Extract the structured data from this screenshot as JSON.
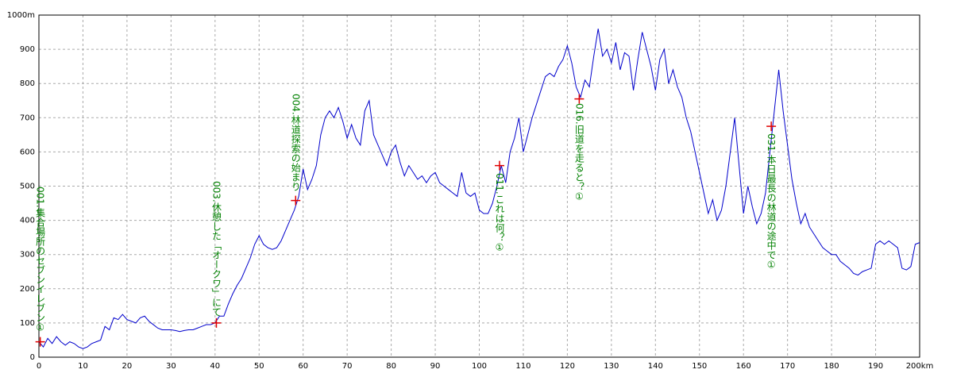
{
  "chart_data": {
    "type": "line",
    "color": "#0000cc",
    "grid": true,
    "x": [
      0,
      1,
      2,
      3,
      4,
      5,
      6,
      7,
      8,
      9,
      10,
      11,
      12,
      13,
      14,
      15,
      16,
      17,
      18,
      19,
      20,
      21,
      22,
      23,
      24,
      25,
      26,
      27,
      28,
      29,
      30,
      31,
      32,
      33,
      34,
      35,
      36,
      37,
      38,
      39,
      40,
      41,
      42,
      43,
      44,
      45,
      46,
      47,
      48,
      49,
      50,
      51,
      52,
      53,
      54,
      55,
      56,
      57,
      58,
      59,
      60,
      61,
      62,
      63,
      64,
      65,
      66,
      67,
      68,
      69,
      70,
      71,
      72,
      73,
      74,
      75,
      76,
      77,
      78,
      79,
      80,
      81,
      82,
      83,
      84,
      85,
      86,
      87,
      88,
      89,
      90,
      91,
      92,
      93,
      94,
      95,
      96,
      97,
      98,
      99,
      100,
      101,
      102,
      103,
      104,
      105,
      106,
      107,
      108,
      109,
      110,
      111,
      112,
      113,
      114,
      115,
      116,
      117,
      118,
      119,
      120,
      121,
      122,
      123,
      124,
      125,
      126,
      127,
      128,
      129,
      130,
      131,
      132,
      133,
      134,
      135,
      136,
      137,
      138,
      139,
      140,
      141,
      142,
      143,
      144,
      145,
      146,
      147,
      148,
      149,
      150,
      151,
      152,
      153,
      154,
      155,
      156,
      157,
      158,
      159,
      160,
      161,
      162,
      163,
      164,
      165,
      166,
      167,
      168,
      169,
      170,
      171,
      172,
      173,
      174,
      175,
      176,
      177,
      178,
      179,
      180,
      181,
      182,
      183,
      184,
      185,
      186,
      187,
      188,
      189,
      190,
      191,
      192,
      193,
      194,
      195,
      196,
      197,
      198,
      199,
      200
    ],
    "values": [
      45,
      30,
      55,
      40,
      60,
      45,
      35,
      45,
      40,
      30,
      25,
      30,
      40,
      45,
      50,
      90,
      80,
      115,
      110,
      125,
      110,
      105,
      100,
      115,
      120,
      105,
      95,
      85,
      80,
      80,
      80,
      78,
      75,
      78,
      80,
      80,
      85,
      90,
      95,
      95,
      100,
      120,
      120,
      155,
      185,
      210,
      230,
      260,
      290,
      330,
      355,
      330,
      320,
      315,
      320,
      340,
      370,
      400,
      430,
      470,
      550,
      490,
      520,
      560,
      650,
      700,
      720,
      700,
      730,
      690,
      640,
      680,
      640,
      620,
      720,
      750,
      650,
      620,
      590,
      560,
      600,
      620,
      570,
      530,
      560,
      540,
      520,
      530,
      510,
      530,
      540,
      510,
      500,
      490,
      480,
      470,
      540,
      480,
      470,
      480,
      430,
      420,
      420,
      450,
      500,
      560,
      510,
      600,
      640,
      700,
      600,
      650,
      700,
      740,
      780,
      820,
      830,
      820,
      850,
      870,
      910,
      860,
      790,
      760,
      810,
      790,
      880,
      960,
      880,
      900,
      860,
      920,
      840,
      890,
      880,
      780,
      870,
      950,
      900,
      850,
      780,
      870,
      900,
      800,
      840,
      790,
      760,
      700,
      660,
      600,
      540,
      480,
      420,
      460,
      400,
      430,
      500,
      600,
      700,
      560,
      420,
      500,
      440,
      390,
      420,
      480,
      600,
      720,
      840,
      720,
      620,
      520,
      450,
      390,
      420,
      380,
      360,
      340,
      320,
      310,
      300,
      300,
      280,
      270,
      260,
      245,
      240,
      250,
      255,
      260,
      330,
      340,
      330,
      340,
      330,
      320,
      260,
      255,
      265,
      330,
      335
    ],
    "xlim": [
      0,
      200
    ],
    "ylim": [
      0,
      1000
    ],
    "xticks": [
      0,
      10,
      20,
      30,
      40,
      50,
      60,
      70,
      80,
      90,
      100,
      110,
      120,
      130,
      140,
      150,
      160,
      170,
      180,
      190,
      {
        "value": 200,
        "label": "200km"
      }
    ],
    "yticks": [
      0,
      100,
      200,
      300,
      400,
      500,
      600,
      700,
      800,
      900,
      {
        "value": 1000,
        "label": "1000m"
      }
    ],
    "annotations": [
      {
        "x": 0.3,
        "y": 45,
        "label": "001.集合場所のセブンイレブン①"
      },
      {
        "x": 40.3,
        "y": 100,
        "label": "003.休憩した「オークワ」にて"
      },
      {
        "x": 58.3,
        "y": 458,
        "label": "004.林道探索の始まり"
      },
      {
        "x": 104.6,
        "y": 560,
        "label": "011.これは何？①"
      },
      {
        "x": 122.7,
        "y": 755,
        "label": "016.旧道を走ると？①"
      },
      {
        "x": 166.3,
        "y": 675,
        "label": "031.本日最長の林道の途中で①"
      }
    ]
  }
}
